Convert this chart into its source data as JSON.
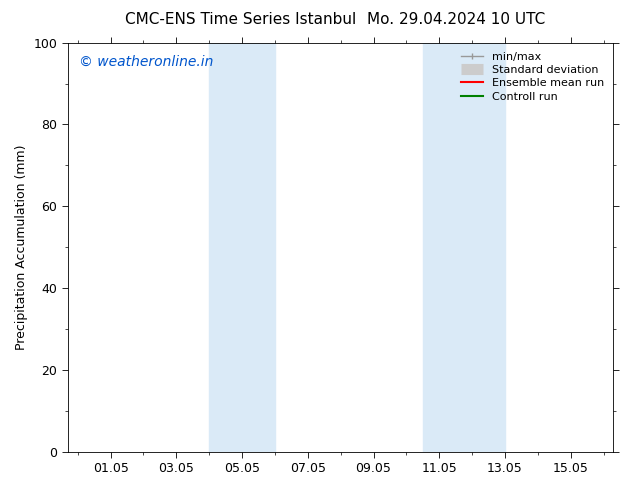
{
  "title_left": "CMC-ENS Time Series Istanbul",
  "title_right": "Mo. 29.04.2024 10 UTC",
  "ylabel": "Precipitation Accumulation (mm)",
  "watermark": "© weatheronline.in",
  "watermark_color": "#0055cc",
  "ylim": [
    0,
    100
  ],
  "xlim": [
    -0.3,
    16.3
  ],
  "xtick_positions": [
    1,
    3,
    5,
    7,
    9,
    11,
    13,
    15
  ],
  "xtick_labels": [
    "01.05",
    "03.05",
    "05.05",
    "07.05",
    "09.05",
    "11.05",
    "13.05",
    "15.05"
  ],
  "ytick_positions": [
    0,
    20,
    40,
    60,
    80,
    100
  ],
  "shaded_regions": [
    {
      "xmin": 4.0,
      "xmax": 5.0,
      "color": "#daeaf7"
    },
    {
      "xmin": 5.0,
      "xmax": 6.0,
      "color": "#daeaf7"
    },
    {
      "xmin": 10.5,
      "xmax": 11.5,
      "color": "#daeaf7"
    },
    {
      "xmin": 11.5,
      "xmax": 13.0,
      "color": "#daeaf7"
    }
  ],
  "legend_items": [
    {
      "label": "min/max",
      "color": "#999999",
      "lw": 1.0,
      "style": "line_with_caps"
    },
    {
      "label": "Standard deviation",
      "color": "#cccccc",
      "lw": 8,
      "style": "thick"
    },
    {
      "label": "Ensemble mean run",
      "color": "#ff0000",
      "lw": 1.5,
      "style": "line"
    },
    {
      "label": "Controll run",
      "color": "#008000",
      "lw": 1.5,
      "style": "line"
    }
  ],
  "background_color": "#ffffff",
  "axis_bg_color": "#ffffff",
  "font_size_title": 11,
  "font_size_axis_label": 9,
  "font_size_tick": 9,
  "font_size_legend": 8,
  "font_size_watermark": 10
}
